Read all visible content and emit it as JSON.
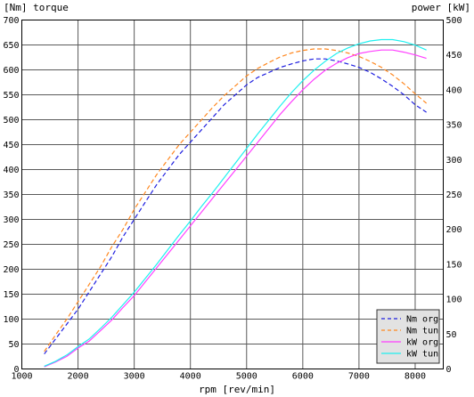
{
  "chart_data": {
    "type": "line",
    "left_axis_title": "[Nm]  torque",
    "right_axis_title": "power  [kW]",
    "xlabel": "rpm [rev/min]",
    "x_range": [
      1000,
      8500
    ],
    "y_left_range": [
      0,
      700
    ],
    "y_right_range": [
      0,
      500
    ],
    "x_ticks": [
      1000,
      2000,
      3000,
      4000,
      5000,
      6000,
      7000,
      8000
    ],
    "y_left_ticks": [
      0,
      50,
      100,
      150,
      200,
      250,
      300,
      350,
      400,
      450,
      500,
      550,
      600,
      650,
      700
    ],
    "y_right_ticks": [
      0,
      50,
      100,
      150,
      200,
      250,
      300,
      350,
      400,
      450,
      500
    ],
    "grid": true,
    "legend_position": "bottom-right",
    "series": [
      {
        "name": "Nm org",
        "axis": "left",
        "color": "#2020e0",
        "dash": true,
        "x": [
          1400,
          1600,
          1800,
          2000,
          2200,
          2400,
          2600,
          2800,
          3000,
          3200,
          3400,
          3600,
          3800,
          4000,
          4200,
          4400,
          4600,
          4800,
          5000,
          5200,
          5400,
          5600,
          5800,
          6000,
          6200,
          6400,
          6600,
          6800,
          7000,
          7200,
          7400,
          7600,
          7800,
          8000,
          8200
        ],
        "y": [
          30,
          60,
          90,
          120,
          155,
          190,
          225,
          265,
          300,
          335,
          370,
          400,
          430,
          455,
          480,
          505,
          530,
          550,
          570,
          585,
          595,
          605,
          612,
          618,
          622,
          622,
          618,
          612,
          605,
          595,
          582,
          567,
          550,
          530,
          515
        ]
      },
      {
        "name": "Nm tun",
        "axis": "left",
        "color": "#ff8820",
        "dash": true,
        "x": [
          1400,
          1600,
          1800,
          2000,
          2200,
          2400,
          2600,
          2800,
          3000,
          3200,
          3400,
          3600,
          3800,
          4000,
          4200,
          4400,
          4600,
          4800,
          5000,
          5200,
          5400,
          5600,
          5800,
          6000,
          6200,
          6400,
          6600,
          6800,
          7000,
          7200,
          7400,
          7600,
          7800,
          8000,
          8200
        ],
        "y": [
          35,
          68,
          100,
          135,
          170,
          205,
          245,
          280,
          320,
          355,
          390,
          420,
          450,
          475,
          500,
          525,
          548,
          568,
          588,
          603,
          615,
          626,
          634,
          639,
          642,
          642,
          639,
          634,
          627,
          617,
          605,
          590,
          572,
          552,
          533
        ]
      },
      {
        "name": "kW org",
        "axis": "right",
        "color": "#ff40ff",
        "dash": false,
        "x": [
          1400,
          1600,
          1800,
          2000,
          2200,
          2400,
          2600,
          2800,
          3000,
          3200,
          3400,
          3600,
          3800,
          4000,
          4200,
          4400,
          4600,
          4800,
          5000,
          5200,
          5400,
          5600,
          5800,
          6000,
          6200,
          6400,
          6600,
          6800,
          7000,
          7200,
          7400,
          7600,
          7800,
          8000,
          8200
        ],
        "y": [
          3,
          10,
          18,
          30,
          40,
          55,
          70,
          88,
          105,
          125,
          145,
          165,
          185,
          205,
          225,
          245,
          265,
          285,
          305,
          325,
          345,
          365,
          383,
          400,
          415,
          428,
          438,
          446,
          452,
          455,
          457,
          457,
          454,
          450,
          445
        ]
      },
      {
        "name": "kW tun",
        "axis": "right",
        "color": "#20f0f0",
        "dash": false,
        "x": [
          1400,
          1600,
          1800,
          2000,
          2200,
          2400,
          2600,
          2800,
          3000,
          3200,
          3400,
          3600,
          3800,
          4000,
          4200,
          4400,
          4600,
          4800,
          5000,
          5200,
          5400,
          5600,
          5800,
          6000,
          6200,
          6400,
          6600,
          6800,
          7000,
          7200,
          7400,
          7600,
          7800,
          8000,
          8200
        ],
        "y": [
          4,
          11,
          20,
          32,
          43,
          58,
          74,
          92,
          110,
          130,
          150,
          171,
          192,
          212,
          233,
          253,
          274,
          295,
          316,
          337,
          357,
          377,
          396,
          413,
          428,
          441,
          452,
          460,
          466,
          470,
          472,
          472,
          469,
          464,
          457
        ]
      }
    ]
  }
}
